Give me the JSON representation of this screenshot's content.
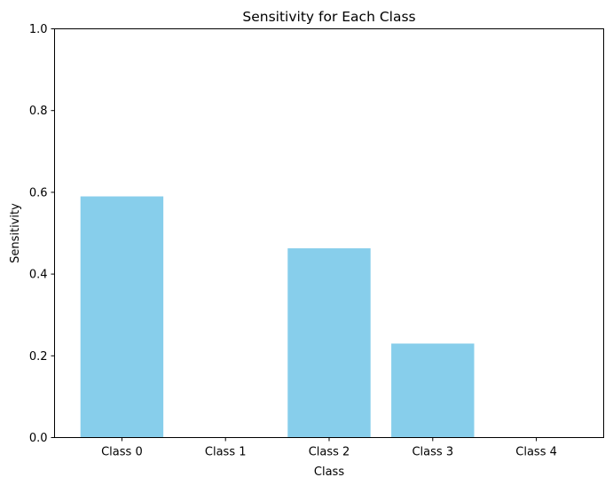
{
  "chart_data": {
    "type": "bar",
    "title": "Sensitivity for Each Class",
    "xlabel": "Class",
    "ylabel": "Sensitivity",
    "categories": [
      "Class 0",
      "Class 1",
      "Class 2",
      "Class 3",
      "Class 4"
    ],
    "values": [
      0.59,
      0.0,
      0.463,
      0.23,
      0.0
    ],
    "ylim": [
      0,
      1
    ],
    "yticks": [
      0.0,
      0.2,
      0.4,
      0.6,
      0.8,
      1.0
    ],
    "ytick_labels": [
      "0.0",
      "0.2",
      "0.4",
      "0.6",
      "0.8",
      "1.0"
    ],
    "bar_color": "#87ceeb",
    "grid": false,
    "legend": "none"
  }
}
